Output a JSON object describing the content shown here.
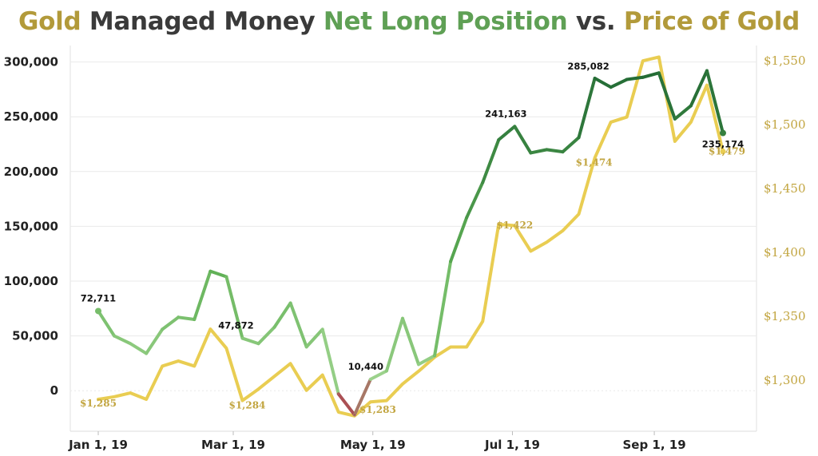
{
  "title": {
    "parts": [
      {
        "text": "Gold",
        "color": "#b29a3a"
      },
      {
        "text": " Managed Money ",
        "color": "#3a3a3a"
      },
      {
        "text": "Net Long Position",
        "color": "#5fa055"
      },
      {
        "text": " vs. ",
        "color": "#3a3a3a"
      },
      {
        "text": "Price of Gold",
        "color": "#b29a3a"
      }
    ]
  },
  "chart_data": {
    "type": "line",
    "title": "Gold Managed Money Net Long Position vs. Price of Gold",
    "x": [
      "2019-01-01",
      "2019-01-08",
      "2019-01-15",
      "2019-01-22",
      "2019-01-29",
      "2019-02-05",
      "2019-02-12",
      "2019-02-19",
      "2019-02-26",
      "2019-03-05",
      "2019-03-12",
      "2019-03-19",
      "2019-03-26",
      "2019-04-02",
      "2019-04-09",
      "2019-04-16",
      "2019-04-23",
      "2019-04-30",
      "2019-05-07",
      "2019-05-14",
      "2019-05-21",
      "2019-05-28",
      "2019-06-04",
      "2019-06-11",
      "2019-06-18",
      "2019-06-25",
      "2019-07-02",
      "2019-07-09",
      "2019-07-16",
      "2019-07-23",
      "2019-07-30",
      "2019-08-06",
      "2019-08-13",
      "2019-08-20",
      "2019-08-27",
      "2019-09-03",
      "2019-09-10",
      "2019-09-17",
      "2019-09-24",
      "2019-10-01"
    ],
    "series": [
      {
        "name": "Net Long Position",
        "axis": "left",
        "values": [
          72711,
          50000,
          43000,
          34000,
          56000,
          67000,
          65000,
          109000,
          104000,
          47872,
          43000,
          58000,
          80000,
          40000,
          56000,
          -3000,
          -22000,
          10440,
          18000,
          66000,
          24000,
          32000,
          118000,
          158000,
          190000,
          229000,
          241163,
          217000,
          220000,
          218000,
          231000,
          285082,
          277000,
          284000,
          286000,
          290000,
          248000,
          260000,
          292000,
          235174
        ]
      },
      {
        "name": "Price of Gold",
        "axis": "right",
        "values": [
          1285,
          1287,
          1290,
          1285,
          1311,
          1315,
          1311,
          1340,
          1325,
          1284,
          1293,
          1303,
          1313,
          1292,
          1304,
          1275,
          1272,
          1283,
          1284,
          1297,
          1307,
          1318,
          1326,
          1326,
          1346,
          1422,
          1421,
          1401,
          1408,
          1417,
          1430,
          1474,
          1502,
          1506,
          1550,
          1553,
          1487,
          1502,
          1531,
          1479
        ]
      }
    ],
    "xticks": [
      "Jan 1, 19",
      "Mar 1, 19",
      "May 1, 19",
      "Jul 1, 19",
      "Sep 1, 19"
    ],
    "xtick_dates": [
      "2019-01-01",
      "2019-03-01",
      "2019-05-01",
      "2019-07-01",
      "2019-09-01"
    ],
    "y_left": {
      "range": [
        -37000,
        315000
      ],
      "ticks": [
        0,
        50000,
        100000,
        150000,
        200000,
        250000,
        300000
      ],
      "tick_labels": [
        "0",
        "50,000",
        "100,000",
        "150,000",
        "200,000",
        "250,000",
        "300,000"
      ]
    },
    "y_right": {
      "range": [
        1260,
        1562
      ],
      "ticks": [
        1300,
        1350,
        1400,
        1450,
        1500,
        1550
      ],
      "tick_labels": [
        "$1,300",
        "$1,350",
        "$1,400",
        "$1,450",
        "$1,500",
        "$1,550"
      ]
    },
    "annotations": [
      {
        "series": 0,
        "index": 0,
        "text": "72,711"
      },
      {
        "series": 0,
        "index": 9,
        "text": "47,872"
      },
      {
        "series": 0,
        "index": 17,
        "text": "10,440"
      },
      {
        "series": 0,
        "index": 26,
        "text": "241,163"
      },
      {
        "series": 0,
        "index": 31,
        "text": "285,082"
      },
      {
        "series": 0,
        "index": 39,
        "text": "235,174"
      },
      {
        "series": 1,
        "index": 0,
        "text": "$1,285"
      },
      {
        "series": 1,
        "index": 9,
        "text": "$1,284"
      },
      {
        "series": 1,
        "index": 17,
        "text": "$1,283"
      },
      {
        "series": 1,
        "index": 25,
        "text": "$1,422"
      },
      {
        "series": 1,
        "index": 31,
        "text": "$1,474"
      },
      {
        "series": 1,
        "index": 39,
        "text": "$1,479"
      }
    ],
    "colors": {
      "low": "#b0183c",
      "light": "#9fd48e",
      "mid": "#5fb055",
      "dark": "#236b35",
      "gold": "#e9cd52",
      "gold_text": "#c2a540",
      "axis_text": "#222222",
      "grid": "#e9e9e9"
    },
    "grid": true
  }
}
